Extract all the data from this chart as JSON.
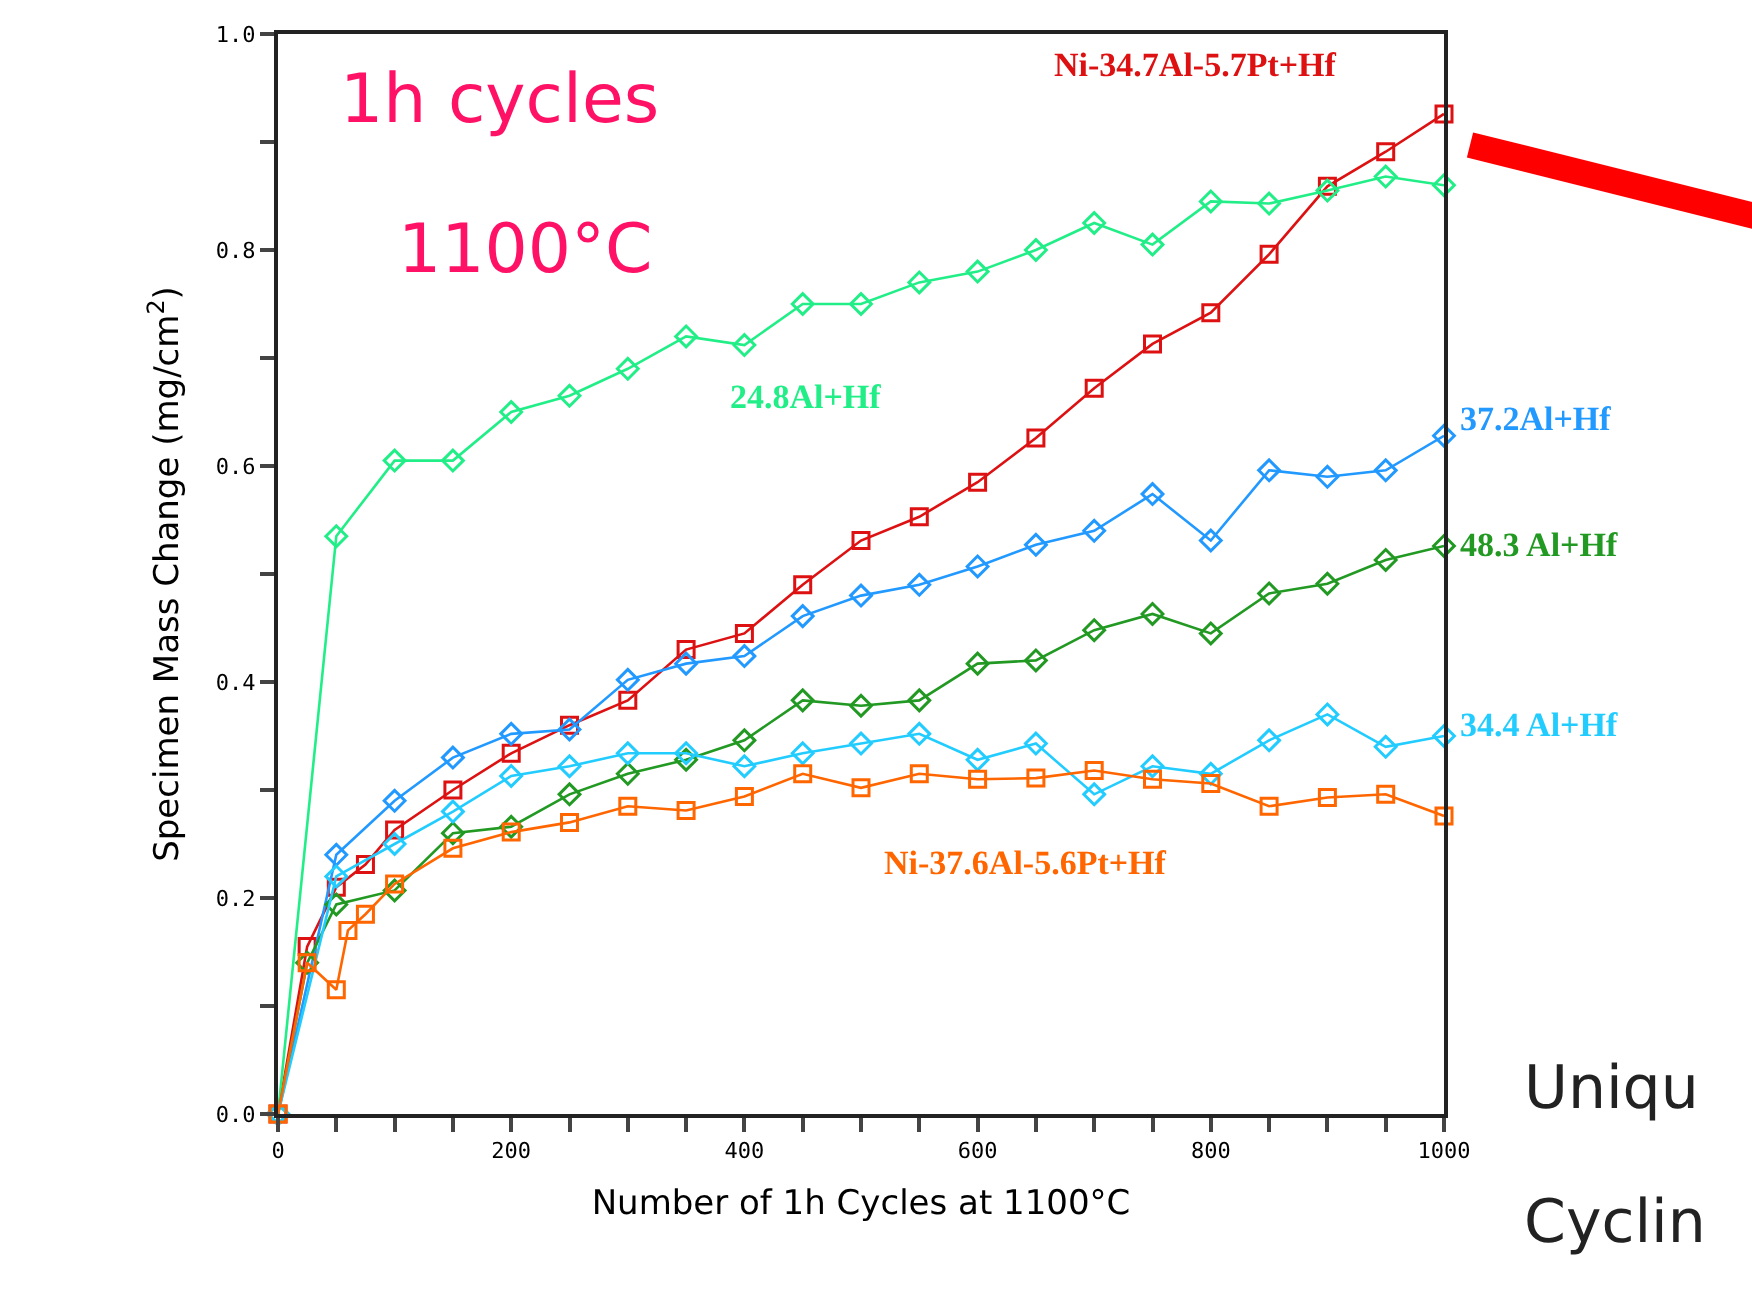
{
  "chart_data": {
    "type": "line",
    "xlabel": "Number of 1h Cycles at 1100°C",
    "ylabel": "Specimen Mass Change (mg/cm$^{2}$)",
    "xlim": [
      0,
      1000
    ],
    "ylim": [
      0,
      1
    ],
    "xticks": [
      0,
      {
        "value": 50,
        "label": null
      },
      {
        "value": 100,
        "label": null
      },
      {
        "value": 150,
        "label": null
      },
      200,
      {
        "value": 250,
        "label": null
      },
      {
        "value": 300,
        "label": null
      },
      {
        "value": 350,
        "label": null
      },
      400,
      {
        "value": 450,
        "label": null
      },
      {
        "value": 500,
        "label": null
      },
      {
        "value": 550,
        "label": null
      },
      600,
      {
        "value": 650,
        "label": null
      },
      {
        "value": 700,
        "label": null
      },
      {
        "value": 750,
        "label": null
      },
      800,
      {
        "value": 850,
        "label": null
      },
      {
        "value": 900,
        "label": null
      },
      {
        "value": 950,
        "label": null
      },
      1000
    ],
    "yticks": [
      {
        "value": 0,
        "label": "0.0"
      },
      {
        "value": 0.1,
        "label": null
      },
      {
        "value": 0.2,
        "label": "0.2"
      },
      {
        "value": 0.3,
        "label": null
      },
      {
        "value": 0.4,
        "label": "0.4"
      },
      {
        "value": 0.5,
        "label": null
      },
      {
        "value": 0.6,
        "label": "0.6"
      },
      {
        "value": 0.7,
        "label": null
      },
      {
        "value": 0.8,
        "label": "0.8"
      },
      {
        "value": 0.9,
        "label": null
      },
      {
        "value": 1,
        "label": "1.0"
      }
    ],
    "grid": false,
    "legend": false,
    "line_style": "solid",
    "annotations": [
      "1h cycles",
      "1100°C",
      "Uniqu",
      "Cyclin"
    ],
    "series": [
      {
        "name": "Ni-34.7Al-5.7Pt+Hf",
        "color": "#dd1111",
        "marker": "square",
        "x": [
          0,
          25,
          50,
          75,
          100,
          150,
          200,
          250,
          300,
          350,
          400,
          450,
          500,
          550,
          600,
          650,
          700,
          750,
          800,
          850,
          900,
          950,
          1000
        ],
        "values": [
          0,
          0.155,
          0.21,
          0.231,
          0.263,
          0.3,
          0.334,
          0.36,
          0.383,
          0.43,
          0.445,
          0.49,
          0.531,
          0.553,
          0.585,
          0.626,
          0.672,
          0.713,
          0.742,
          0.796,
          0.859,
          0.891,
          0.926
        ]
      },
      {
        "name": "24.8Al+Hf",
        "color": "#22ee88",
        "marker": "diamond",
        "x": [
          0,
          50,
          100,
          150,
          200,
          250,
          300,
          350,
          400,
          450,
          500,
          550,
          600,
          650,
          700,
          750,
          800,
          850,
          900,
          950,
          1000
        ],
        "values": [
          0,
          0.535,
          0.605,
          0.605,
          0.65,
          0.665,
          0.69,
          0.72,
          0.712,
          0.75,
          0.75,
          0.77,
          0.78,
          0.8,
          0.825,
          0.805,
          0.845,
          0.843,
          0.855,
          0.868,
          0.86
        ]
      },
      {
        "name": "37.2Al+Hf",
        "color": "#2299ff",
        "marker": "diamond",
        "x": [
          0,
          50,
          100,
          150,
          200,
          250,
          300,
          350,
          400,
          450,
          500,
          550,
          600,
          650,
          700,
          750,
          800,
          850,
          900,
          950,
          1000
        ],
        "values": [
          0,
          0.24,
          0.29,
          0.33,
          0.352,
          0.356,
          0.402,
          0.417,
          0.424,
          0.461,
          0.48,
          0.49,
          0.507,
          0.527,
          0.54,
          0.574,
          0.531,
          0.596,
          0.59,
          0.596,
          0.628
        ]
      },
      {
        "name": "48.3 Al+Hf",
        "color": "#229922",
        "marker": "diamond",
        "x": [
          0,
          25,
          50,
          100,
          150,
          200,
          250,
          300,
          350,
          400,
          450,
          500,
          550,
          600,
          650,
          700,
          750,
          800,
          850,
          900,
          950,
          1000
        ],
        "values": [
          0,
          0.14,
          0.194,
          0.207,
          0.26,
          0.266,
          0.296,
          0.315,
          0.328,
          0.346,
          0.383,
          0.378,
          0.383,
          0.417,
          0.42,
          0.448,
          0.463,
          0.445,
          0.482,
          0.491,
          0.513,
          0.526
        ]
      },
      {
        "name": "34.4 Al+Hf",
        "color": "#22ccff",
        "marker": "diamond",
        "x": [
          0,
          50,
          100,
          150,
          200,
          250,
          300,
          350,
          400,
          450,
          500,
          550,
          600,
          650,
          700,
          750,
          800,
          850,
          900,
          950,
          1000
        ],
        "values": [
          0,
          0.22,
          0.25,
          0.28,
          0.313,
          0.322,
          0.334,
          0.334,
          0.322,
          0.334,
          0.343,
          0.352,
          0.328,
          0.343,
          0.296,
          0.322,
          0.315,
          0.346,
          0.37,
          0.34,
          0.35
        ]
      },
      {
        "name": "Ni-37.6Al-5.6Pt+Hf",
        "color": "#ff6600",
        "marker": "square",
        "x": [
          0,
          25,
          50,
          60,
          75,
          100,
          150,
          200,
          250,
          300,
          350,
          400,
          450,
          500,
          550,
          600,
          650,
          700,
          750,
          800,
          850,
          900,
          950,
          1000
        ],
        "values": [
          0,
          0.14,
          0.115,
          0.17,
          0.185,
          0.213,
          0.246,
          0.261,
          0.27,
          0.285,
          0.281,
          0.294,
          0.315,
          0.302,
          0.315,
          0.31,
          0.311,
          0.318,
          0.31,
          0.306,
          0.285,
          0.293,
          0.296,
          0.276
        ]
      }
    ]
  }
}
